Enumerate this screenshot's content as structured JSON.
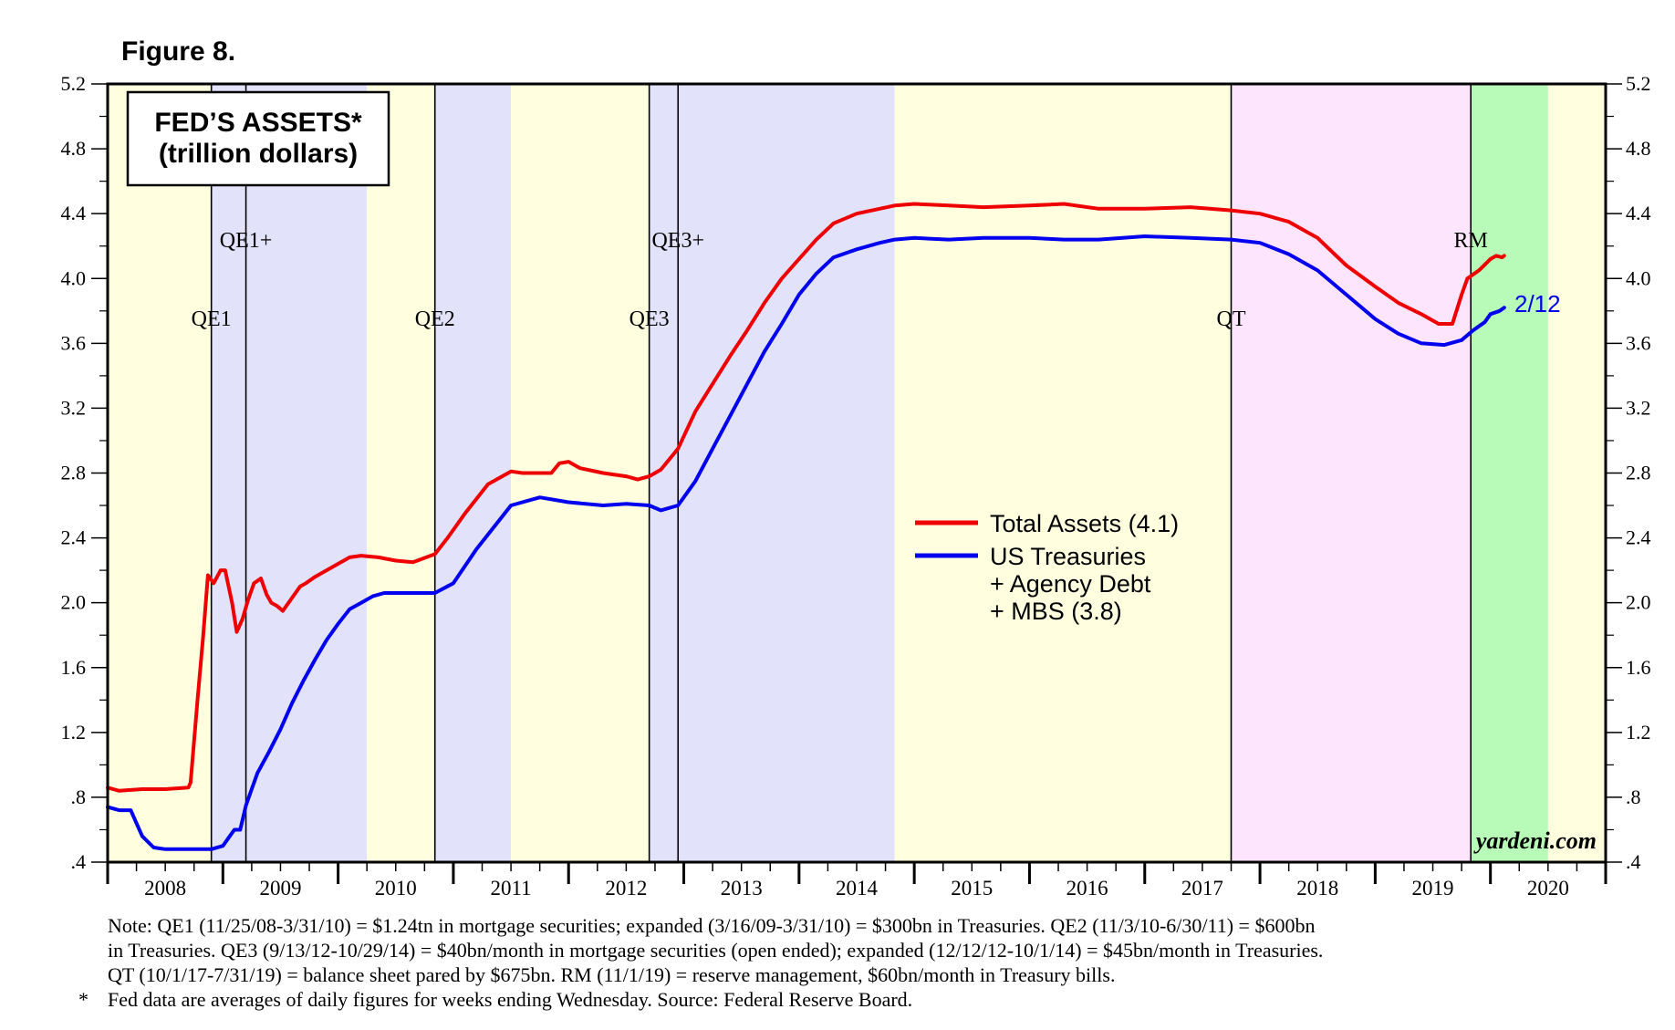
{
  "figure_label": "Figure 8.",
  "title": "FED’S ASSETS*",
  "subtitle": "(trillion dollars)",
  "watermark": "yardeni.com",
  "last_date_label": "2/12",
  "notes": [
    {
      "mark": "",
      "text": "Note: QE1 (11/25/08-3/31/10) = $1.24tn in mortgage securities; expanded (3/16/09-3/31/10) = $300bn in Treasuries. QE2 (11/3/10-6/30/11) = $600bn"
    },
    {
      "mark": "",
      "text": "in Treasuries. QE3 (9/13/12-10/29/14) = $40bn/month in mortgage securities (open ended); expanded (12/12/12-10/1/14) = $45bn/month in Treasuries."
    },
    {
      "mark": "",
      "text": "QT (10/1/17-7/31/19) = balance sheet pared by $675bn. RM (11/1/19) = reserve management, $60bn/month in Treasury bills."
    },
    {
      "mark": "*",
      "text": "Fed data are averages of daily figures for weeks ending Wednesday. Source: Federal Reserve Board."
    }
  ],
  "colors": {
    "total": "#ee0000",
    "treasuries": "#0000ee",
    "shade_yellow": "#ffffe0",
    "shade_blue": "#e2e2fb",
    "shade_pink": "#fde6fd",
    "shade_green": "#b8fbb8"
  },
  "chart_data": {
    "type": "line",
    "x_domain": [
      2008.0,
      2021.0
    ],
    "ylim": [
      0.4,
      5.2
    ],
    "yticks": [
      0.4,
      0.8,
      1.2,
      1.6,
      2.0,
      2.4,
      2.8,
      3.2,
      3.6,
      4.0,
      4.4,
      4.8,
      5.2
    ],
    "ytick_labels": [
      ".4",
      ".8",
      "1.2",
      "1.6",
      "2.0",
      "2.4",
      "2.8",
      "3.2",
      "3.6",
      "4.0",
      "4.4",
      "4.8",
      "5.2"
    ],
    "year_labels": [
      "2008",
      "2009",
      "2010",
      "2011",
      "2012",
      "2013",
      "2014",
      "2015",
      "2016",
      "2017",
      "2018",
      "2019",
      "2020"
    ],
    "shaded_periods": [
      {
        "start": 2008.0,
        "end": 2008.9,
        "color": "shade_yellow"
      },
      {
        "start": 2008.9,
        "end": 2010.25,
        "color": "shade_blue"
      },
      {
        "start": 2010.25,
        "end": 2010.84,
        "color": "shade_yellow"
      },
      {
        "start": 2010.84,
        "end": 2011.5,
        "color": "shade_blue"
      },
      {
        "start": 2011.5,
        "end": 2012.7,
        "color": "shade_yellow"
      },
      {
        "start": 2012.7,
        "end": 2014.83,
        "color": "shade_blue"
      },
      {
        "start": 2014.83,
        "end": 2017.75,
        "color": "shade_yellow"
      },
      {
        "start": 2017.75,
        "end": 2019.83,
        "color": "shade_pink"
      },
      {
        "start": 2019.83,
        "end": 2020.5,
        "color": "shade_green"
      },
      {
        "start": 2020.5,
        "end": 2021.0,
        "color": "shade_yellow"
      }
    ],
    "events": [
      {
        "label": "QE1",
        "x": 2008.9,
        "label_row": "low"
      },
      {
        "label": "QE1+",
        "x": 2009.2,
        "label_row": "high"
      },
      {
        "label": "QE2",
        "x": 2010.84,
        "label_row": "low"
      },
      {
        "label": "QE3",
        "x": 2012.7,
        "label_row": "low"
      },
      {
        "label": "QE3+",
        "x": 2012.95,
        "label_row": "high"
      },
      {
        "label": "QT",
        "x": 2017.75,
        "label_row": "low"
      },
      {
        "label": "RM",
        "x": 2019.83,
        "label_row": "high"
      }
    ],
    "legend_position": "center-right",
    "series": [
      {
        "name": "Total Assets (4.1)",
        "legend_lines": [
          "Total Assets (4.1)"
        ],
        "color": "total",
        "x": [
          2008.0,
          2008.1,
          2008.3,
          2008.5,
          2008.7,
          2008.72,
          2008.78,
          2008.83,
          2008.87,
          2008.92,
          2008.98,
          2009.02,
          2009.08,
          2009.12,
          2009.17,
          2009.22,
          2009.27,
          2009.33,
          2009.38,
          2009.42,
          2009.47,
          2009.52,
          2009.57,
          2009.62,
          2009.67,
          2009.72,
          2009.8,
          2009.9,
          2010.0,
          2010.1,
          2010.2,
          2010.35,
          2010.5,
          2010.65,
          2010.84,
          2010.95,
          2011.1,
          2011.3,
          2011.5,
          2011.6,
          2011.75,
          2011.85,
          2011.92,
          2012.0,
          2012.1,
          2012.3,
          2012.5,
          2012.6,
          2012.7,
          2012.8,
          2012.95,
          2013.1,
          2013.25,
          2013.4,
          2013.55,
          2013.7,
          2013.85,
          2014.0,
          2014.15,
          2014.3,
          2014.5,
          2014.7,
          2014.83,
          2015.0,
          2015.3,
          2015.6,
          2016.0,
          2016.3,
          2016.6,
          2017.0,
          2017.4,
          2017.75,
          2018.0,
          2018.25,
          2018.5,
          2018.75,
          2019.0,
          2019.2,
          2019.4,
          2019.55,
          2019.67,
          2019.75,
          2019.8,
          2019.9,
          2020.0,
          2020.05,
          2020.1,
          2020.12
        ],
        "y": [
          0.86,
          0.84,
          0.85,
          0.85,
          0.86,
          0.89,
          1.4,
          1.8,
          2.17,
          2.12,
          2.2,
          2.2,
          2.0,
          1.82,
          1.9,
          2.02,
          2.12,
          2.15,
          2.05,
          2.0,
          1.98,
          1.95,
          2.0,
          2.05,
          2.1,
          2.12,
          2.16,
          2.2,
          2.24,
          2.28,
          2.29,
          2.28,
          2.26,
          2.25,
          2.3,
          2.4,
          2.55,
          2.73,
          2.81,
          2.8,
          2.8,
          2.8,
          2.86,
          2.87,
          2.83,
          2.8,
          2.78,
          2.76,
          2.78,
          2.82,
          2.95,
          3.18,
          3.35,
          3.52,
          3.68,
          3.85,
          4.0,
          4.12,
          4.24,
          4.34,
          4.4,
          4.43,
          4.45,
          4.46,
          4.45,
          4.44,
          4.45,
          4.46,
          4.43,
          4.43,
          4.44,
          4.42,
          4.4,
          4.35,
          4.25,
          4.08,
          3.95,
          3.85,
          3.78,
          3.72,
          3.72,
          3.9,
          4.0,
          4.05,
          4.12,
          4.14,
          4.13,
          4.14
        ]
      },
      {
        "name": "US Treasuries + Agency Debt + MBS (3.8)",
        "legend_lines": [
          "US Treasuries",
          "+ Agency Debt",
          "+ MBS (3.8)"
        ],
        "color": "treasuries",
        "x": [
          2008.0,
          2008.1,
          2008.15,
          2008.2,
          2008.3,
          2008.4,
          2008.5,
          2008.7,
          2008.9,
          2009.0,
          2009.05,
          2009.1,
          2009.15,
          2009.2,
          2009.25,
          2009.3,
          2009.4,
          2009.5,
          2009.6,
          2009.7,
          2009.8,
          2009.9,
          2010.0,
          2010.1,
          2010.2,
          2010.3,
          2010.4,
          2010.6,
          2010.84,
          2011.0,
          2011.2,
          2011.5,
          2011.75,
          2012.0,
          2012.3,
          2012.5,
          2012.7,
          2012.8,
          2012.95,
          2013.1,
          2013.25,
          2013.4,
          2013.55,
          2013.7,
          2013.85,
          2014.0,
          2014.15,
          2014.3,
          2014.5,
          2014.7,
          2014.83,
          2015.0,
          2015.3,
          2015.6,
          2016.0,
          2016.3,
          2016.6,
          2017.0,
          2017.4,
          2017.75,
          2018.0,
          2018.25,
          2018.5,
          2018.75,
          2019.0,
          2019.2,
          2019.4,
          2019.6,
          2019.75,
          2019.85,
          2019.95,
          2020.0,
          2020.08,
          2020.12
        ],
        "y": [
          0.74,
          0.72,
          0.72,
          0.72,
          0.56,
          0.49,
          0.48,
          0.48,
          0.48,
          0.5,
          0.55,
          0.6,
          0.6,
          0.75,
          0.85,
          0.95,
          1.08,
          1.22,
          1.38,
          1.52,
          1.65,
          1.77,
          1.87,
          1.96,
          2.0,
          2.04,
          2.06,
          2.06,
          2.06,
          2.12,
          2.33,
          2.6,
          2.65,
          2.62,
          2.6,
          2.61,
          2.6,
          2.57,
          2.6,
          2.75,
          2.95,
          3.15,
          3.35,
          3.55,
          3.72,
          3.9,
          4.03,
          4.13,
          4.18,
          4.22,
          4.24,
          4.25,
          4.24,
          4.25,
          4.25,
          4.24,
          4.24,
          4.26,
          4.25,
          4.24,
          4.22,
          4.15,
          4.05,
          3.9,
          3.75,
          3.66,
          3.6,
          3.59,
          3.62,
          3.68,
          3.73,
          3.78,
          3.8,
          3.82
        ]
      }
    ]
  }
}
